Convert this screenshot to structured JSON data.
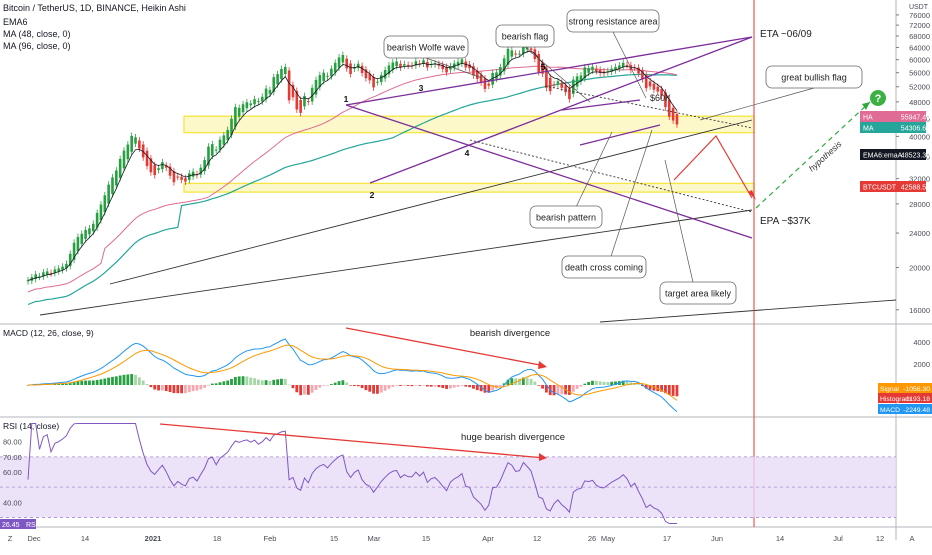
{
  "header": {
    "symbol_line": "Bitcoin / TetherUS, 1D, BINANCE, Heikin Ashi",
    "indicators": [
      "EMA6",
      "MA (48, close, 0)",
      "MA (96, close, 0)"
    ],
    "currency": "USDT"
  },
  "colors": {
    "bull": "#26a041",
    "bear": "#e53935",
    "ma48": "#e06b94",
    "ma96": "#26a69a",
    "ema6": "#131722",
    "purple": "#7b2d9b",
    "red_line": "#e53935",
    "yellow_zone": "#f5e642",
    "macd_line": "#2196f3",
    "signal_line": "#ff9800",
    "rsi_line": "#7e57c2",
    "rsi_band": "#e9dcf7",
    "hypothesis": "#2eaa3c"
  },
  "chart_data": [
    {
      "type": "candlestick",
      "x_ticks": [
        "Dec",
        "14",
        "2021",
        "18",
        "Feb",
        "15",
        "Mar",
        "15",
        "Apr",
        "12",
        "26",
        "May",
        "17",
        "Jun",
        "14",
        "Jul",
        "12",
        "Aug"
      ],
      "y_ticks": [
        16000,
        20000,
        24000,
        28000,
        32000,
        36000,
        40000,
        44000,
        48000,
        52000,
        56000,
        60000,
        64000,
        68000,
        72000,
        76000
      ],
      "ylim": [
        15000,
        78000
      ],
      "y_scale": "log",
      "price_labels": [
        {
          "label": "HA",
          "value": "55947.49",
          "color": "#e06b94"
        },
        {
          "label": "MA",
          "value": "54306.64",
          "color": "#26a69a"
        },
        {
          "label": "EMA6:emaA",
          "value": "48523.30",
          "color": "#131722"
        },
        {
          "label": "BTCUSDT",
          "value": "42588.59",
          "color": "#e53935"
        }
      ],
      "close_series": [
        18700,
        19000,
        19300,
        19100,
        19500,
        19600,
        19400,
        19800,
        19900,
        20100,
        20400,
        21500,
        22800,
        23500,
        23900,
        24400,
        24600,
        25200,
        26700,
        27900,
        29300,
        31000,
        32200,
        33400,
        35500,
        37100,
        38300,
        40100,
        39800,
        37500,
        35800,
        34200,
        33100,
        32600,
        33800,
        34900,
        33900,
        32500,
        31400,
        32300,
        31800,
        31500,
        32900,
        33200,
        32600,
        33900,
        35300,
        37900,
        38400,
        37300,
        39300,
        40200,
        41400,
        43900,
        46700,
        46500,
        47400,
        47900,
        47600,
        48700,
        48200,
        49300,
        51500,
        51100,
        54700,
        55600,
        57100,
        57700,
        48400,
        49200,
        46100,
        45300,
        49500,
        48000,
        51700,
        53900,
        55300,
        56000,
        55100,
        57200,
        59000,
        60700,
        61500,
        57300,
        55600,
        57700,
        58700,
        55900,
        54400,
        53800,
        51800,
        53400,
        55300,
        56800,
        58200,
        59100,
        59400,
        57600,
        58600,
        58100,
        58100,
        59500,
        58700,
        59800,
        57600,
        58600,
        58900,
        58100,
        57100,
        56100,
        58000,
        58800,
        59300,
        60100,
        57600,
        57400,
        55200,
        54200,
        53200,
        51400,
        52300,
        55900,
        56100,
        57700,
        60400,
        63500,
        63000,
        61700,
        61900,
        64800,
        64000,
        63100,
        60200,
        56200,
        55700,
        51700,
        50800,
        52600,
        53500,
        51700,
        50500,
        48700,
        54000,
        54900,
        55200,
        57600,
        57400,
        57800,
        56500,
        55900,
        55800,
        56500,
        57200,
        57700,
        58200,
        59000,
        58300,
        56800,
        57500,
        55800,
        54100,
        51600,
        52100,
        51200,
        50700,
        49600,
        46700,
        44400,
        43500,
        42600
      ],
      "moving_average_48": [],
      "annotations": [
        "bearish Wolfe wave",
        "bearish flag",
        "strong resistance area",
        "ETA ~06/09",
        "great bullish flag",
        "$60K",
        "hypothesis",
        "bearish pattern",
        "EPA ~$37K",
        "death cross coming",
        "target area likely",
        "1",
        "2",
        "3",
        "4",
        "5"
      ]
    },
    {
      "type": "line",
      "title": "MACD (12, 26, close, 9)",
      "annotation": "bearish divergence",
      "y_ticks": [
        4000,
        2000,
        0
      ],
      "labels": [
        {
          "label": "Signal",
          "value": "-1056.30",
          "color": "#ff9800"
        },
        {
          "label": "Histogram",
          "value": "-1193.18",
          "color": "#e53935"
        },
        {
          "label": "MACD",
          "value": "-2249.48",
          "color": "#2196f3"
        }
      ]
    },
    {
      "type": "line",
      "title": "RSI (14, close)",
      "annotation": "huge bearish divergence",
      "y_ticks": [
        "80.00",
        "70.00",
        "60.00",
        "40.00"
      ],
      "ylim": [
        25,
        95
      ],
      "band": [
        30,
        70
      ],
      "current": "26.45",
      "current_label": "RSI"
    }
  ],
  "footer": {
    "left": "Z",
    "right": "A"
  }
}
